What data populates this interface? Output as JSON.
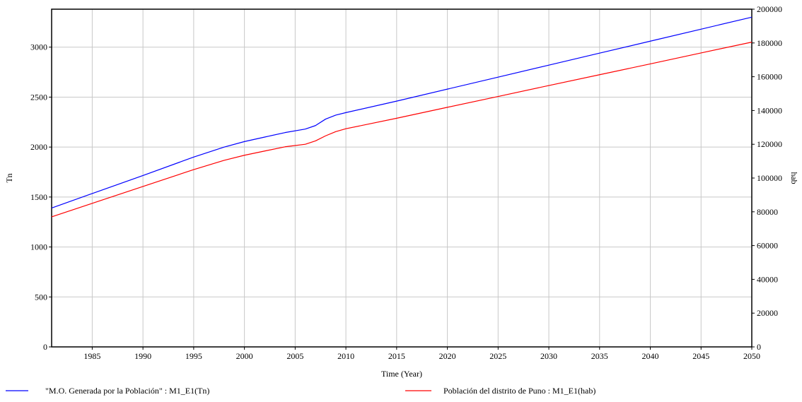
{
  "chart_data": {
    "type": "line",
    "xlabel": "Time (Year)",
    "ylabel_left": "Tn",
    "ylabel_right": "hab",
    "xlim": [
      1981,
      2050
    ],
    "ylim_left": [
      0,
      3380
    ],
    "ylim_right": [
      0,
      200000
    ],
    "x_ticks": [
      1985,
      1990,
      1995,
      2000,
      2005,
      2010,
      2015,
      2020,
      2025,
      2030,
      2035,
      2040,
      2045,
      2050
    ],
    "y_ticks_left": [
      0,
      500,
      1000,
      1500,
      2000,
      2500,
      3000
    ],
    "y_ticks_right": [
      0,
      20000,
      40000,
      60000,
      80000,
      100000,
      120000,
      140000,
      160000,
      180000,
      200000
    ],
    "grid": true,
    "legend_position": "bottom",
    "series": [
      {
        "name": "\"M.O. Generada por la Población\" : M1_E1(Tn)",
        "axis": "left",
        "color": "#0000ff",
        "x": [
          1981,
          1985,
          1990,
          1995,
          1998,
          2000,
          2002,
          2004,
          2006,
          2007,
          2008,
          2009,
          2010,
          2015,
          2020,
          2025,
          2030,
          2035,
          2040,
          2045,
          2050
        ],
        "y": [
          1390,
          1535,
          1715,
          1900,
          2000,
          2055,
          2100,
          2145,
          2180,
          2215,
          2280,
          2320,
          2345,
          2460,
          2580,
          2700,
          2820,
          2940,
          3060,
          3180,
          3300
        ]
      },
      {
        "name": "Población del distrito de Puno : M1_E1(hab)",
        "axis": "right",
        "color": "#ff0000",
        "x": [
          1981,
          1985,
          1990,
          1995,
          1998,
          2000,
          2002,
          2004,
          2006,
          2007,
          2008,
          2009,
          2010,
          2015,
          2020,
          2025,
          2030,
          2035,
          2040,
          2045,
          2050
        ],
        "y": [
          77000,
          85000,
          95000,
          105000,
          110500,
          113500,
          116000,
          118500,
          120000,
          122000,
          125000,
          127500,
          129200,
          135400,
          141900,
          148300,
          154800,
          161200,
          167600,
          174100,
          180500
        ]
      }
    ]
  }
}
